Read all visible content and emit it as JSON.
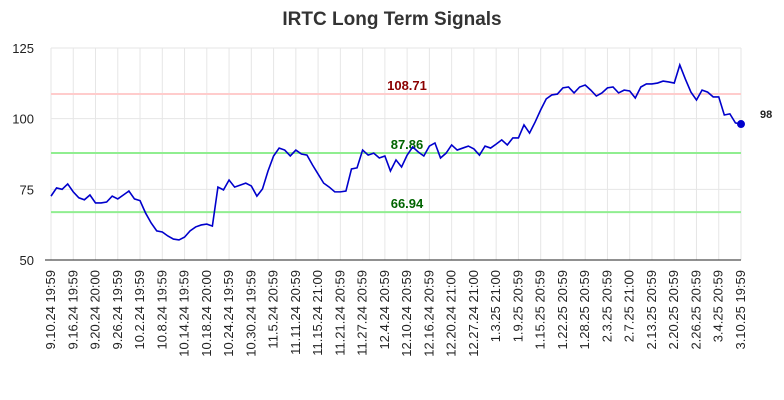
{
  "chart_data": {
    "type": "line",
    "title": "IRTC Long Term Signals",
    "categories": [
      "9.10.24 19:59",
      null,
      null,
      null,
      "9.16.24 19:59",
      null,
      null,
      null,
      "9.20.24 20:00",
      null,
      null,
      null,
      "9.26.24 19:59",
      null,
      null,
      null,
      "10.2.24 19:59",
      null,
      null,
      null,
      "10.8.24 19:59",
      null,
      null,
      null,
      "10.14.24 19:59",
      null,
      null,
      null,
      "10.18.24 20:00",
      null,
      null,
      null,
      "10.24.24 19:59",
      null,
      null,
      null,
      "10.30.24 19:59",
      null,
      null,
      null,
      "11.5.24 20:59",
      null,
      null,
      null,
      "11.11.24 20:59",
      null,
      null,
      null,
      "11.15.24 21:00",
      null,
      null,
      null,
      "11.21.24 20:59",
      null,
      null,
      null,
      "11.27.24 20:59",
      null,
      null,
      null,
      "12.4.24 20:59",
      null,
      null,
      null,
      "12.10.24 20:59",
      null,
      null,
      null,
      "12.16.24 20:59",
      null,
      null,
      null,
      "12.20.24 21:00",
      null,
      null,
      null,
      "12.27.24 21:00",
      null,
      null,
      null,
      "1.3.25 21:00",
      null,
      null,
      null,
      "1.9.25 20:59",
      null,
      null,
      null,
      "1.15.25 20:59",
      null,
      null,
      null,
      "1.22.25 20:59",
      null,
      null,
      null,
      "1.28.25 20:59",
      null,
      null,
      null,
      "2.3.25 20:59",
      null,
      null,
      null,
      "2.7.25 21:00",
      null,
      null,
      null,
      "2.13.25 20:59",
      null,
      null,
      null,
      "2.20.25 20:59",
      null,
      null,
      null,
      "2.26.25 20:59",
      null,
      null,
      null,
      "3.4.25 20:59",
      null,
      null,
      null,
      "3.10.25 19:59"
    ],
    "values": [
      72.6,
      75.5,
      75,
      76.9,
      74.1,
      72,
      71.3,
      73,
      70.2,
      70.2,
      70.5,
      72.6,
      71.6,
      73,
      74.4,
      71.6,
      71,
      66.6,
      63.1,
      60.3,
      59.9,
      58.5,
      57.4,
      57.1,
      58.1,
      60.3,
      61.7,
      62.4,
      62.7,
      62,
      75.8,
      74.8,
      78.3,
      75.8,
      76.5,
      77.2,
      76.2,
      72.6,
      75.1,
      81.5,
      86.8,
      89.6,
      88.9,
      86.8,
      88.9,
      87.5,
      87.1,
      83.6,
      80.4,
      77.2,
      75.8,
      74.1,
      74.1,
      74.4,
      82.2,
      82.6,
      88.9,
      87.1,
      87.8,
      86.1,
      86.8,
      81.5,
      85.4,
      82.9,
      87.1,
      90,
      88.2,
      86.8,
      90.3,
      91.4,
      86.1,
      87.8,
      90.7,
      88.9,
      89.6,
      90.3,
      89.3,
      87.1,
      90.3,
      89.6,
      91,
      92.5,
      90.7,
      93.2,
      93.2,
      97.8,
      94.9,
      98.8,
      103.1,
      107,
      108.4,
      108.7,
      110.9,
      111.2,
      109.1,
      111.2,
      111.9,
      110.1,
      108,
      109.1,
      110.9,
      111.2,
      109.1,
      110.1,
      109.8,
      107.3,
      111.2,
      112.3,
      112.3,
      112.6,
      113.3,
      113,
      112.6,
      119,
      114,
      109.4,
      106.6,
      110.1,
      109.4,
      107.7,
      107.7,
      101.3,
      101.7,
      98.5,
      98.1
    ],
    "value_labels": [
      null,
      null,
      null,
      null,
      null,
      null,
      null,
      null,
      null,
      null,
      null,
      null,
      null,
      null,
      null,
      null,
      null,
      null,
      null,
      null,
      null,
      null,
      null,
      null,
      null,
      null,
      null,
      null,
      null,
      null,
      null,
      null,
      null,
      null,
      null,
      null,
      null,
      null,
      null,
      null,
      null,
      null,
      null,
      null,
      null,
      null,
      null,
      null,
      null,
      null,
      null,
      null,
      null,
      null,
      null,
      null,
      null,
      null,
      null,
      null,
      null,
      null,
      null,
      null,
      null,
      null,
      null,
      null,
      null,
      null,
      null,
      null,
      null,
      null,
      null,
      null,
      null,
      null,
      null,
      null,
      null,
      null,
      null,
      null,
      null,
      null,
      null,
      null,
      null,
      null,
      null,
      null,
      null,
      null,
      null,
      null,
      null,
      null,
      null,
      null,
      null,
      null,
      null,
      null,
      null,
      null,
      null,
      null,
      null,
      null,
      null,
      null,
      null,
      null,
      null,
      null,
      null,
      null,
      null,
      null,
      null,
      null,
      null,
      null,
      "98"
    ],
    "color": "#0000cc",
    "ylim": [
      50,
      125
    ],
    "yticks": [
      50,
      75,
      100,
      125
    ],
    "grid": true,
    "reference_lines": [
      {
        "value": 108.71,
        "color": "#ffcccc",
        "label_color": "#8b0000"
      },
      {
        "value": 87.86,
        "color": "#90ee90",
        "label_color": "#006400"
      },
      {
        "value": 66.94,
        "color": "#90ee90",
        "label_color": "#006400"
      }
    ]
  }
}
